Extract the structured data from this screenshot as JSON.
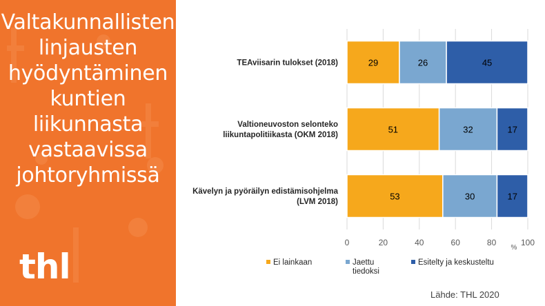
{
  "sidebar": {
    "title_lines": [
      "Valtakunnallisten",
      "linjausten",
      "hyödyntäminen",
      "kuntien",
      "liikunnasta",
      "vastaavissa",
      "johtoryhmissä"
    ],
    "logo_text": "thl",
    "background": "#f0742c"
  },
  "source_text": "Lähde: THL 2020",
  "chart_data": {
    "type": "bar",
    "orientation": "horizontal",
    "stacked": true,
    "categories": [
      [
        "TEAviisarin tulokset (2018)"
      ],
      [
        "Valtioneuvoston selonteko",
        "liikuntapolitiikasta (OKM 2018)"
      ],
      [
        "Kävelyn ja pyöräilyn edistämisohjelma",
        "(LVM 2018)"
      ]
    ],
    "series": [
      {
        "name": "Ei lainkaan",
        "values": [
          29,
          51,
          53
        ],
        "color": "#f6a81c"
      },
      {
        "name": "Jaettu tiedoksi",
        "values": [
          26,
          32,
          30
        ],
        "color": "#7aa7d0"
      },
      {
        "name": "Esitelty ja keskusteltu",
        "values": [
          45,
          17,
          17
        ],
        "color": "#2e5ea8"
      }
    ],
    "xlim": [
      0,
      100
    ],
    "xticks": [
      0,
      20,
      40,
      60,
      80,
      100
    ],
    "xunit": "%",
    "grid": true,
    "legend": "bottom"
  }
}
